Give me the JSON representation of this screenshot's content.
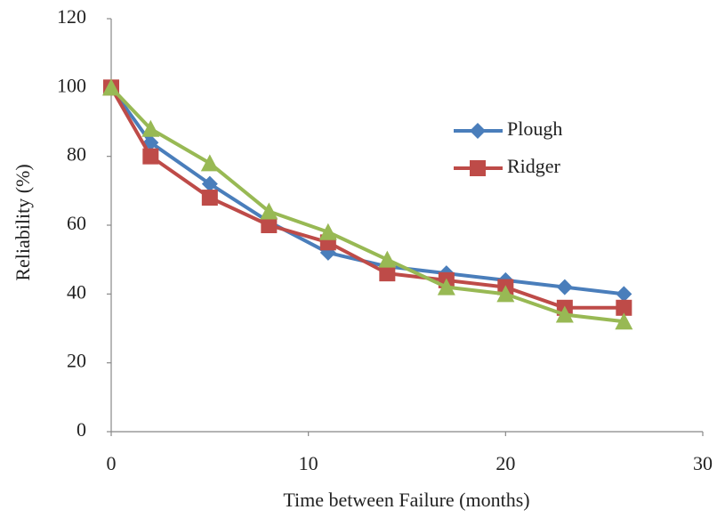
{
  "chart_data": {
    "type": "line",
    "x_label": "Time between Failure (months)",
    "y_label": "Reliability (%)",
    "x": [
      0,
      2,
      5,
      8,
      11,
      14,
      17,
      20,
      23,
      26
    ],
    "series": [
      {
        "name": "Plough",
        "color": "#4a7ebb",
        "marker": "diamond",
        "values": [
          100,
          84,
          72,
          61,
          52,
          48,
          46,
          44,
          42,
          40
        ]
      },
      {
        "name": "Ridger",
        "color": "#be4b48",
        "marker": "square",
        "values": [
          100,
          80,
          68,
          60,
          55,
          46,
          44,
          42,
          36,
          36
        ]
      },
      {
        "color": "#98b954",
        "marker": "triangle",
        "values": [
          100,
          88,
          78,
          64,
          58,
          50,
          42,
          40,
          34,
          32
        ]
      }
    ],
    "xlim": [
      0,
      30
    ],
    "xticks": [
      0,
      10,
      20,
      30
    ],
    "ylim": [
      0,
      120
    ],
    "yticks": [
      0,
      20,
      40,
      60,
      80,
      100,
      120
    ],
    "grid": false,
    "legend": "right"
  }
}
